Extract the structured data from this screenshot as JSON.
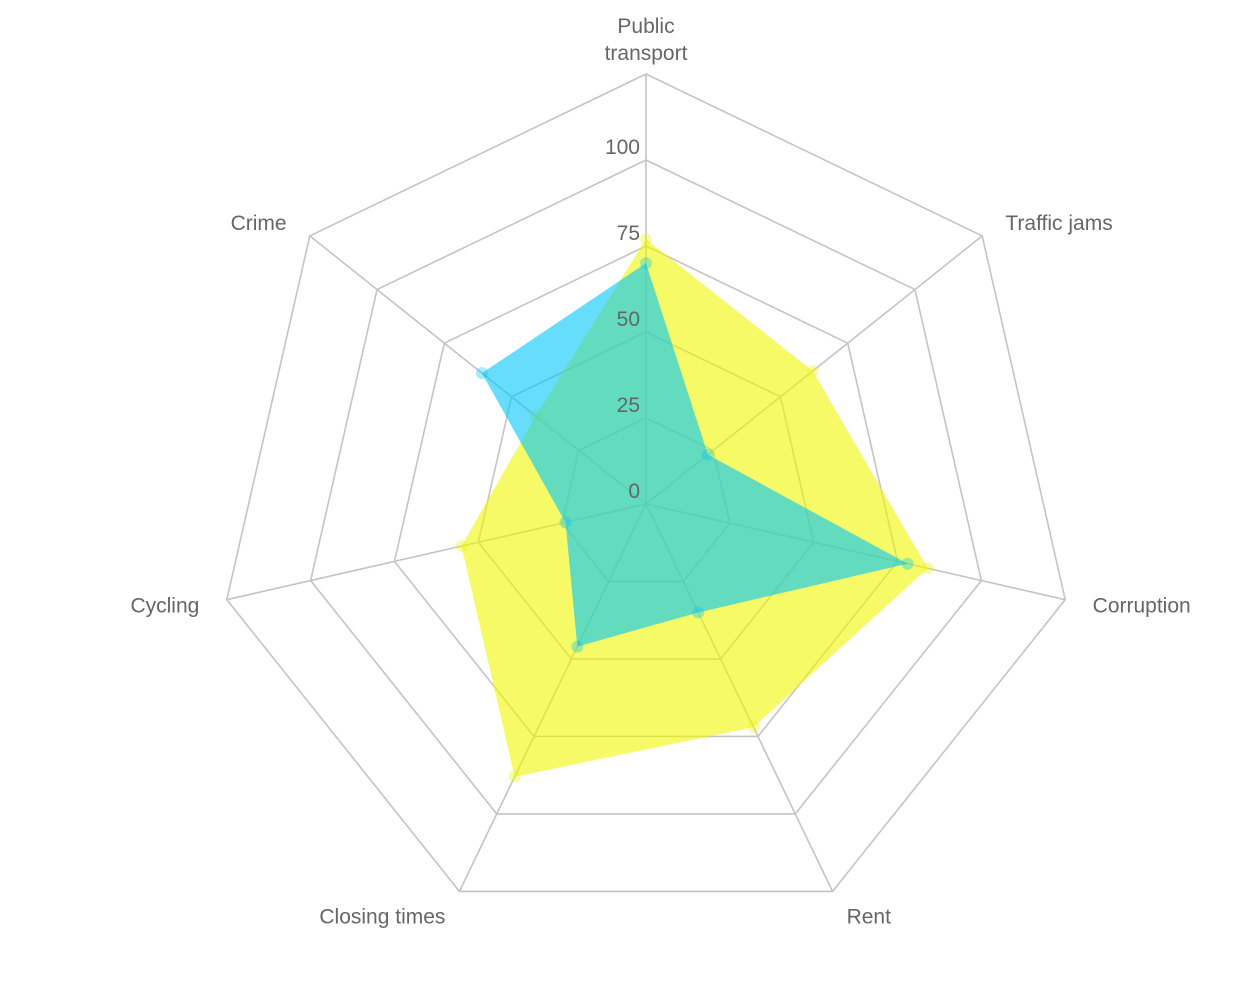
{
  "chart_data": {
    "type": "radar",
    "categories": [
      "Public transport",
      "Traffic jams",
      "Corruption",
      "Rent",
      "Closing times",
      "Cycling",
      "Crime"
    ],
    "category_lines": [
      [
        "Public",
        "transport"
      ],
      [
        "Traffic jams"
      ],
      [
        "Corruption"
      ],
      [
        "Rent"
      ],
      [
        "Closing times"
      ],
      [
        "Cycling"
      ],
      [
        "Crime"
      ]
    ],
    "r_ticks": [
      0,
      25,
      50,
      75,
      100
    ],
    "r_max": 125,
    "grid": true,
    "legend": "none",
    "series": [
      {
        "color": "#eef700",
        "values": [
          77,
          62,
          84,
          72,
          88,
          55,
          41
        ]
      },
      {
        "color": "#00c6f8",
        "values": [
          70,
          23,
          78,
          35,
          46,
          24,
          61
        ]
      }
    ]
  }
}
